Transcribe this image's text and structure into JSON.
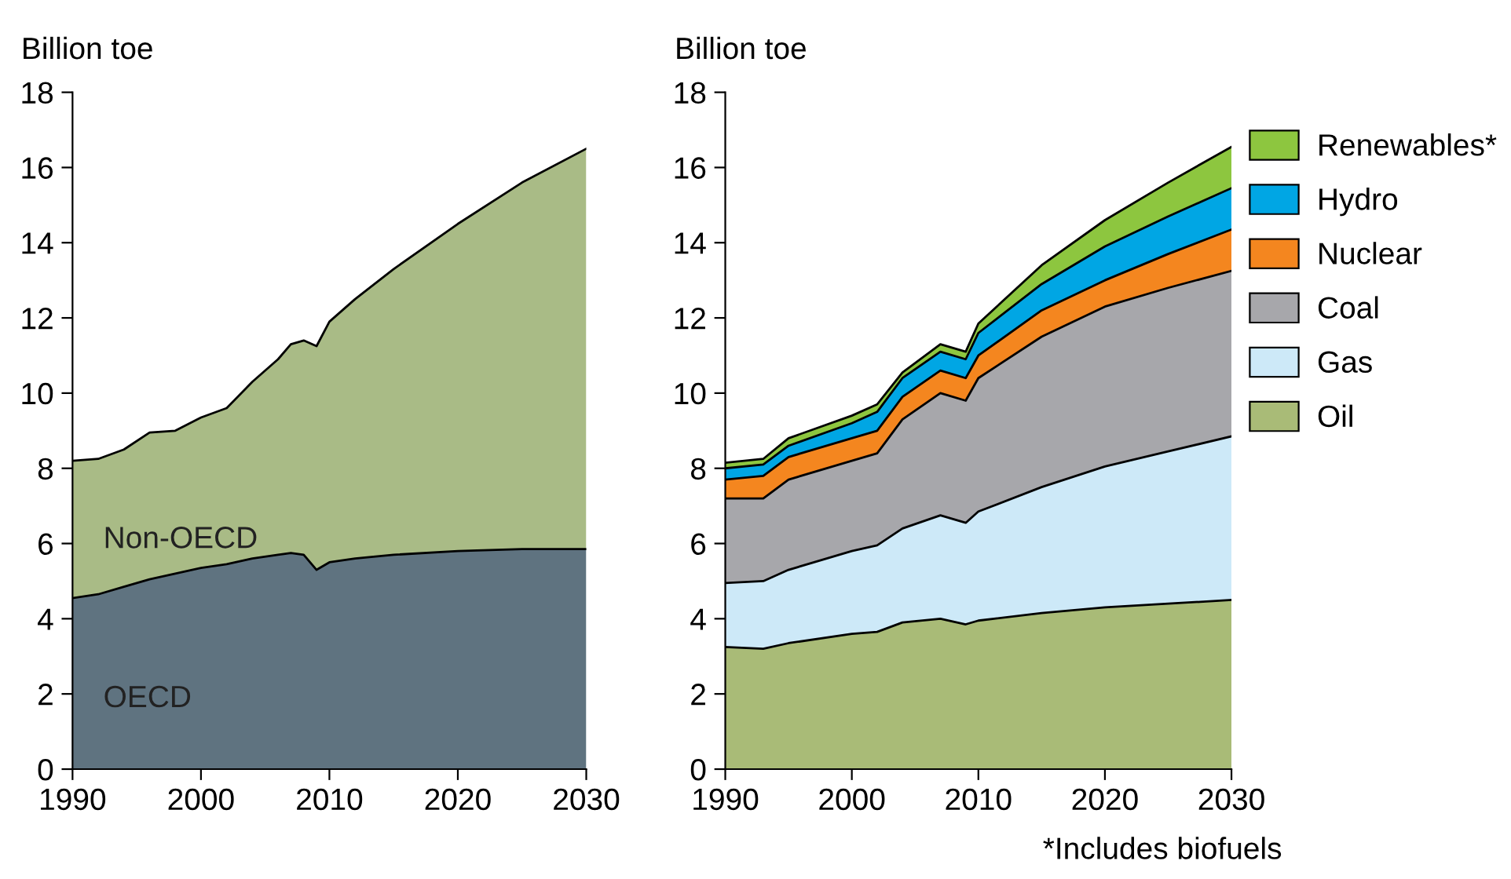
{
  "chart_data": [
    {
      "type": "area",
      "stacked": true,
      "ylabel": "Billion toe",
      "xlim": [
        1990,
        2030
      ],
      "xticks": [
        1990,
        2000,
        2010,
        2020,
        2030
      ],
      "ylim": [
        0,
        18
      ],
      "yticks": [
        0,
        2,
        4,
        6,
        8,
        10,
        12,
        14,
        16,
        18
      ],
      "grid": false,
      "legend": false,
      "x": [
        1990,
        1992,
        1994,
        1996,
        1998,
        2000,
        2002,
        2004,
        2006,
        2007,
        2008,
        2009,
        2010,
        2012,
        2015,
        2020,
        2025,
        2030
      ],
      "series": [
        {
          "name": "OECD",
          "color": "#5f7380",
          "values": [
            4.55,
            4.65,
            4.85,
            5.05,
            5.2,
            5.35,
            5.45,
            5.6,
            5.7,
            5.75,
            5.7,
            5.3,
            5.5,
            5.6,
            5.7,
            5.8,
            5.85,
            5.85
          ]
        },
        {
          "name": "Non-OECD",
          "color": "#a9bb86",
          "values": [
            3.65,
            3.6,
            3.65,
            3.9,
            3.8,
            4.0,
            4.15,
            4.7,
            5.2,
            5.55,
            5.7,
            5.95,
            6.4,
            6.9,
            7.6,
            8.7,
            9.75,
            10.65
          ]
        }
      ]
    },
    {
      "type": "area",
      "stacked": true,
      "ylabel": "Billion toe",
      "xlim": [
        1990,
        2030
      ],
      "xticks": [
        1990,
        2000,
        2010,
        2020,
        2030
      ],
      "ylim": [
        0,
        18
      ],
      "yticks": [
        0,
        2,
        4,
        6,
        8,
        10,
        12,
        14,
        16,
        18
      ],
      "grid": false,
      "legend": "right",
      "x": [
        1990,
        1993,
        1995,
        2000,
        2002,
        2004,
        2007,
        2009,
        2010,
        2015,
        2020,
        2025,
        2030
      ],
      "series": [
        {
          "name": "Oil",
          "color": "#a9bb77",
          "values": [
            3.25,
            3.2,
            3.35,
            3.6,
            3.65,
            3.9,
            4.0,
            3.85,
            3.95,
            4.15,
            4.3,
            4.4,
            4.5
          ]
        },
        {
          "name": "Gas",
          "color": "#cde9f8",
          "values": [
            1.7,
            1.8,
            1.95,
            2.2,
            2.3,
            2.5,
            2.75,
            2.7,
            2.9,
            3.35,
            3.75,
            4.05,
            4.35
          ]
        },
        {
          "name": "Coal",
          "color": "#a7a7ab",
          "values": [
            2.25,
            2.2,
            2.4,
            2.4,
            2.45,
            2.9,
            3.25,
            3.25,
            3.55,
            4.0,
            4.25,
            4.35,
            4.4
          ]
        },
        {
          "name": "Nuclear",
          "color": "#f4861f",
          "values": [
            0.5,
            0.6,
            0.6,
            0.6,
            0.6,
            0.6,
            0.6,
            0.6,
            0.6,
            0.7,
            0.7,
            0.9,
            1.1
          ]
        },
        {
          "name": "Hydro",
          "color": "#00a6e4",
          "values": [
            0.3,
            0.3,
            0.3,
            0.4,
            0.5,
            0.5,
            0.5,
            0.5,
            0.6,
            0.7,
            0.9,
            1.0,
            1.1
          ]
        },
        {
          "name": "Renewables*",
          "color": "#8dc63f",
          "values": [
            0.15,
            0.15,
            0.2,
            0.2,
            0.2,
            0.15,
            0.2,
            0.2,
            0.25,
            0.5,
            0.7,
            0.9,
            1.1
          ]
        }
      ],
      "annotations": [
        "*Includes biofuels"
      ]
    }
  ]
}
